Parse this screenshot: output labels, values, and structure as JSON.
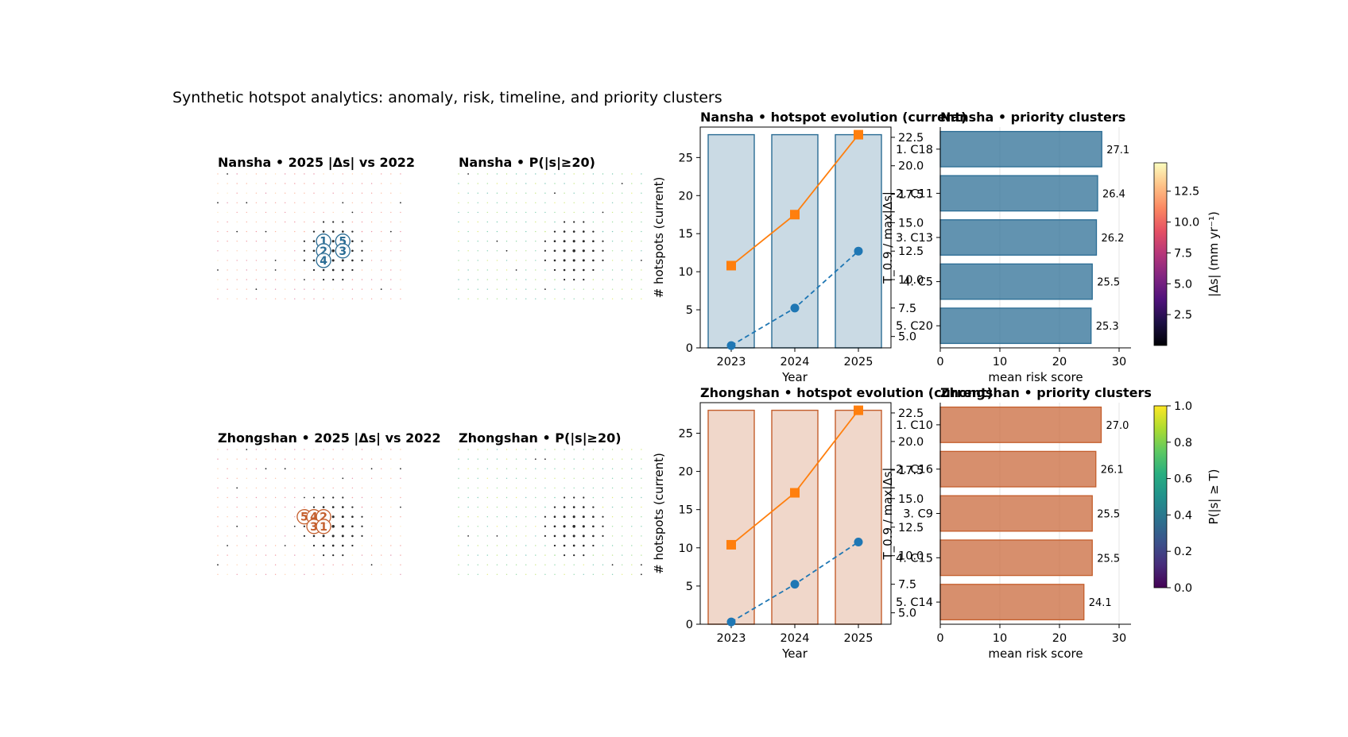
{
  "figure": {
    "suptitle": "Synthetic hotspot analytics: anomaly, risk, timeline, and priority clusters",
    "fill_alpha": 0.25,
    "bar_alpha": 0.75
  },
  "colormaps": {
    "magma": [
      "#000004",
      "#1c1044",
      "#4f127b",
      "#812581",
      "#b5367a",
      "#e55064",
      "#fb8761",
      "#fec287",
      "#fcfdbf"
    ],
    "viridis": [
      "#440154",
      "#472d7b",
      "#3b528b",
      "#2c728e",
      "#21918c",
      "#28ae80",
      "#5ec962",
      "#addc30",
      "#fde725"
    ]
  },
  "panels": [
    {
      "site": "Nansha",
      "accent": "#1f77b4",
      "edge": "#2a6c94",
      "bar_color": "#2e6f96",
      "map_delta": {
        "title": "Nansha • 2025 |Δs| vs 2022"
      },
      "map_prob": {
        "title": "Nansha • P(|s|≥20)"
      },
      "markers": [
        {
          "label": "1",
          "col": 11,
          "row": 7
        },
        {
          "label": "5",
          "col": 13,
          "row": 7
        },
        {
          "label": "2",
          "col": 11,
          "row": 8
        },
        {
          "label": "3",
          "col": 13,
          "row": 8
        },
        {
          "label": "4",
          "col": 11,
          "row": 9
        }
      ],
      "evolution": {
        "title": "Nansha • hotspot evolution (current)",
        "xlabel": "Year",
        "ylabel": "# hotspots (current)",
        "ylabel2": "T_0.9 / max|Δs|",
        "years": [
          "2023",
          "2024",
          "2025"
        ],
        "hotspots": [
          28,
          28,
          28
        ],
        "t09": [
          4.2,
          7.5,
          12.5
        ],
        "max_delta": [
          10.8,
          17.5,
          28.0
        ],
        "ylim": [
          0,
          29
        ],
        "y2lim": [
          4.0,
          23.4
        ],
        "yticks": [
          0,
          5,
          10,
          15,
          20,
          25
        ],
        "y2ticks": [
          "5.0",
          "7.5",
          "10.0",
          "12.5",
          "15.0",
          "17.5",
          "20.0",
          "22.5"
        ]
      },
      "priority": {
        "title": "Nansha • priority clusters",
        "xlabel": "mean risk score",
        "clusters": [
          "1. C18",
          "2. C11",
          "3. C13",
          "4. C5",
          "5. C20"
        ],
        "scores": [
          27.1,
          26.4,
          26.2,
          25.5,
          25.3
        ],
        "value_labels": [
          "27.1",
          "26.4",
          "26.2",
          "25.5",
          "25.3"
        ],
        "xlim": [
          0,
          32
        ],
        "xticks": [
          0,
          10,
          20,
          30
        ]
      }
    },
    {
      "site": "Zhongshan",
      "accent": "#1f77b4",
      "edge": "#c45e2c",
      "bar_color": "#c96a3c",
      "map_delta": {
        "title": "Zhongshan • 2025 |Δs| vs 2022"
      },
      "map_prob": {
        "title": "Zhongshan • P(|s|≥20)"
      },
      "markers": [
        {
          "label": "5",
          "col": 9,
          "row": 7
        },
        {
          "label": "4",
          "col": 10,
          "row": 7
        },
        {
          "label": "2",
          "col": 11,
          "row": 7
        },
        {
          "label": "3",
          "col": 10,
          "row": 8
        },
        {
          "label": "1",
          "col": 11,
          "row": 8
        }
      ],
      "evolution": {
        "title": "Zhongshan • hotspot evolution (current)",
        "xlabel": "Year",
        "ylabel": "# hotspots (current)",
        "ylabel2": "T_0.9 / max|Δs|",
        "years": [
          "2023",
          "2024",
          "2025"
        ],
        "hotspots": [
          28,
          28,
          28
        ],
        "t09": [
          4.2,
          7.5,
          11.2
        ],
        "max_delta": [
          10.4,
          17.2,
          28.0
        ],
        "ylim": [
          0,
          29
        ],
        "y2lim": [
          4.0,
          23.4
        ],
        "yticks": [
          0,
          5,
          10,
          15,
          20,
          25
        ],
        "y2ticks": [
          "5.0",
          "7.5",
          "10.0",
          "12.5",
          "15.0",
          "17.5",
          "20.0",
          "22.5"
        ]
      },
      "priority": {
        "title": "Zhongshan • priority clusters",
        "xlabel": "mean risk score",
        "clusters": [
          "1. C10",
          "2. C16",
          "3. C9",
          "4. C15",
          "5. C14"
        ],
        "scores": [
          27.0,
          26.1,
          25.5,
          25.5,
          24.1
        ],
        "value_labels": [
          "27.0",
          "26.1",
          "25.5",
          "25.5",
          "24.1"
        ],
        "xlim": [
          0,
          32
        ],
        "xticks": [
          0,
          10,
          20,
          30
        ]
      }
    }
  ],
  "colorbars": [
    {
      "label": "|Δs| (mm yr⁻¹)",
      "cmap": "magma",
      "ticks": [
        "2.5",
        "5.0",
        "7.5",
        "10.0",
        "12.5"
      ],
      "range": [
        0,
        14.8
      ],
      "values": [
        2.5,
        5.0,
        7.5,
        10.0,
        12.5
      ]
    },
    {
      "label": "P(|s| ≥ T)",
      "cmap": "viridis",
      "ticks": [
        "0.0",
        "0.2",
        "0.4",
        "0.6",
        "0.8",
        "1.0"
      ],
      "range": [
        0,
        1
      ],
      "values": [
        0.0,
        0.2,
        0.4,
        0.6,
        0.8,
        1.0
      ]
    }
  ]
}
